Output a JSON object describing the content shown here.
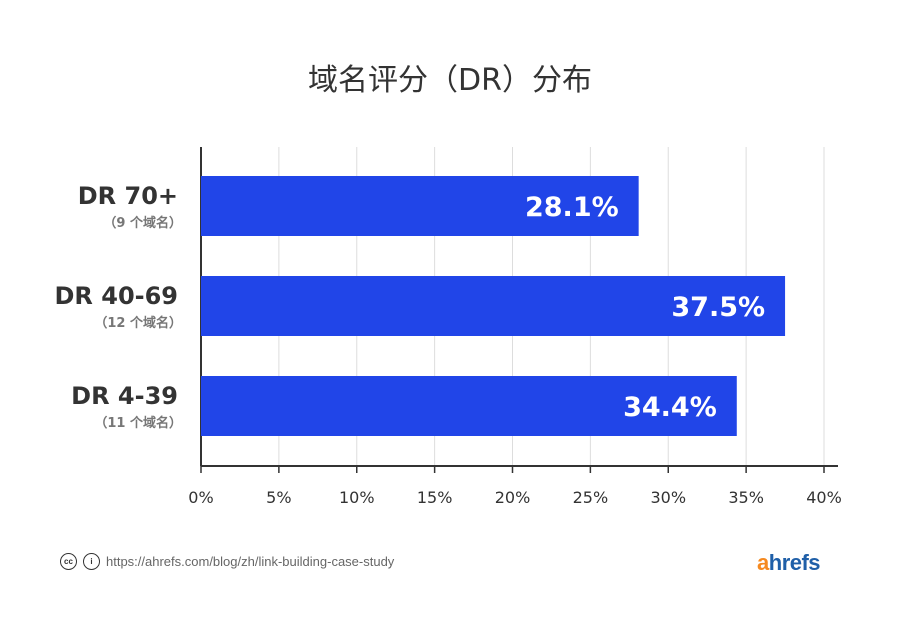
{
  "chart_data": {
    "type": "bar",
    "orientation": "horizontal",
    "title": "域名评分（DR）分布",
    "categories": [
      "DR 70+",
      "DR 40-69",
      "DR 4-39"
    ],
    "sublabels": [
      "（9 个域名）",
      "（12 个域名）",
      "（11 个域名）"
    ],
    "values": [
      28.1,
      37.5,
      34.4
    ],
    "data_labels": [
      "28.1%",
      "37.5%",
      "34.4%"
    ],
    "xlim": [
      0,
      40
    ],
    "xticks": [
      "0%",
      "5%",
      "10%",
      "15%",
      "20%",
      "25%",
      "30%",
      "35%",
      "40%"
    ],
    "xlabel": "",
    "ylabel": "",
    "grid": "vertical",
    "bar_color": "#2145e8"
  },
  "footer": {
    "url": "https://ahrefs.com/blog/zh/link-building-case-study",
    "icons": [
      "cc-icon",
      "attribution-icon"
    ]
  },
  "logo": {
    "text_a": "a",
    "text_rest": "hrefs"
  }
}
